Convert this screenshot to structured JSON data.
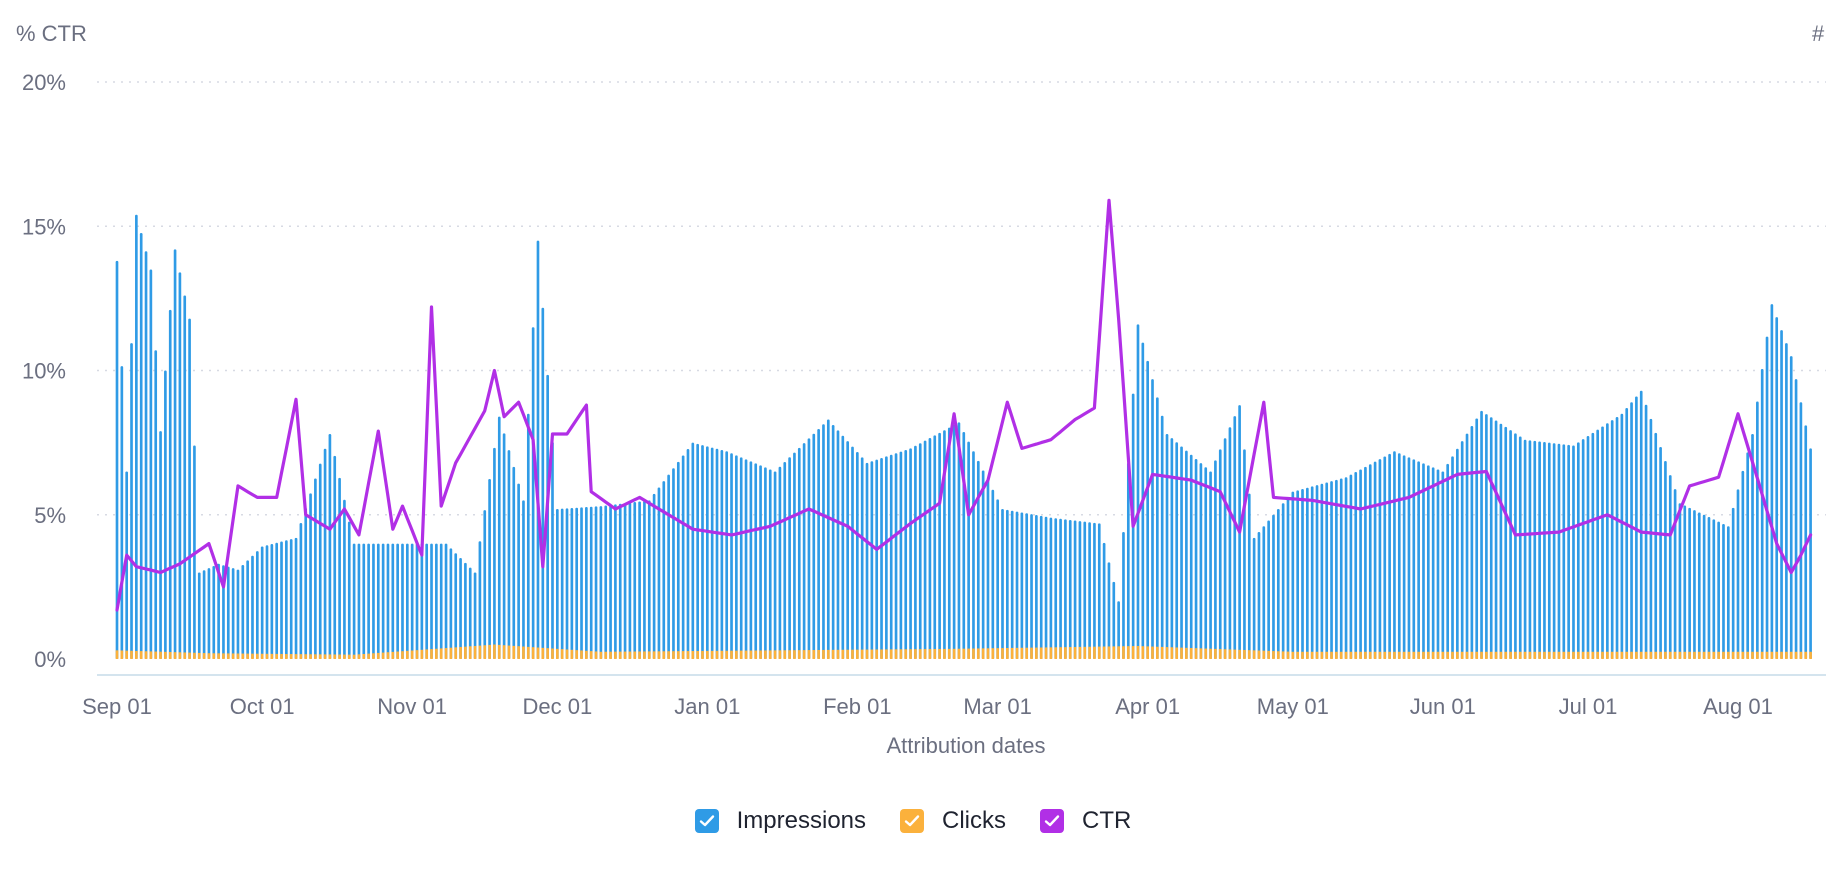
{
  "colors": {
    "impressions": "#2f9be6",
    "clicks": "#fbb13c",
    "ctr": "#b12fe6",
    "grid": "#d7dae3",
    "baseline": "#c5dce8"
  },
  "chart_data": {
    "type": "bar",
    "title": "",
    "xlabel": "Attribution dates",
    "ylabel_left": "% CTR",
    "ylabel_right": "#",
    "ylim_left": [
      0,
      20
    ],
    "yticks_left": [
      "0%",
      "5%",
      "10%",
      "15%",
      "20%"
    ],
    "x_ticks": [
      "Sep 01",
      "Oct 01",
      "Nov 01",
      "Dec 01",
      "Jan 01",
      "Feb 01",
      "Mar 01",
      "Apr 01",
      "May 01",
      "Jun 01",
      "Jul 01",
      "Aug 01"
    ],
    "x_start": "2023-09-01",
    "x_end": "2024-08-16",
    "grid": true,
    "legend_position": "bottom-center",
    "series": [
      {
        "name": "Impressions",
        "type": "bar",
        "axis": "secondary",
        "scale_note": "values plotted on the hidden # axis, shown here on the same visual scale as the % axis",
        "checkpoints": [
          [
            "2023-09-01",
            13.8
          ],
          [
            "2023-09-03",
            6.5
          ],
          [
            "2023-09-05",
            15.4
          ],
          [
            "2023-09-08",
            13.5
          ],
          [
            "2023-09-10",
            7.9
          ],
          [
            "2023-09-13",
            14.2
          ],
          [
            "2023-09-16",
            11.8
          ],
          [
            "2023-09-18",
            3.0
          ],
          [
            "2023-09-22",
            3.3
          ],
          [
            "2023-09-26",
            3.1
          ],
          [
            "2023-10-01",
            3.9
          ],
          [
            "2023-10-08",
            4.2
          ],
          [
            "2023-10-15",
            7.8
          ],
          [
            "2023-10-20",
            4.0
          ],
          [
            "2023-10-26",
            4.0
          ],
          [
            "2023-11-01",
            4.0
          ],
          [
            "2023-11-08",
            4.0
          ],
          [
            "2023-11-14",
            3.0
          ],
          [
            "2023-11-19",
            8.4
          ],
          [
            "2023-11-24",
            5.5
          ],
          [
            "2023-11-27",
            14.5
          ],
          [
            "2023-12-01",
            5.2
          ],
          [
            "2023-12-10",
            5.3
          ],
          [
            "2023-12-20",
            5.5
          ],
          [
            "2023-12-29",
            7.5
          ],
          [
            "2024-01-05",
            7.2
          ],
          [
            "2024-01-15",
            6.5
          ],
          [
            "2024-01-26",
            8.3
          ],
          [
            "2024-02-03",
            6.8
          ],
          [
            "2024-02-12",
            7.3
          ],
          [
            "2024-02-22",
            8.2
          ],
          [
            "2024-03-02",
            5.2
          ],
          [
            "2024-03-12",
            4.9
          ],
          [
            "2024-03-22",
            4.7
          ],
          [
            "2024-03-26",
            2.0
          ],
          [
            "2024-03-30",
            11.6
          ],
          [
            "2024-04-05",
            7.8
          ],
          [
            "2024-04-14",
            6.5
          ],
          [
            "2024-04-20",
            8.8
          ],
          [
            "2024-04-23",
            4.2
          ],
          [
            "2024-05-01",
            5.8
          ],
          [
            "2024-05-12",
            6.3
          ],
          [
            "2024-05-22",
            7.2
          ],
          [
            "2024-06-01",
            6.5
          ],
          [
            "2024-06-09",
            8.6
          ],
          [
            "2024-06-18",
            7.6
          ],
          [
            "2024-06-28",
            7.4
          ],
          [
            "2024-07-08",
            8.5
          ],
          [
            "2024-07-12",
            9.3
          ],
          [
            "2024-07-20",
            5.4
          ],
          [
            "2024-07-30",
            4.6
          ],
          [
            "2024-08-04",
            7.8
          ],
          [
            "2024-08-08",
            12.3
          ],
          [
            "2024-08-12",
            10.5
          ],
          [
            "2024-08-16",
            7.3
          ]
        ]
      },
      {
        "name": "Clicks",
        "type": "bar",
        "axis": "secondary",
        "checkpoints": [
          [
            "2023-09-01",
            0.3
          ],
          [
            "2023-09-20",
            0.2
          ],
          [
            "2023-10-20",
            0.15
          ],
          [
            "2023-11-18",
            0.5
          ],
          [
            "2023-12-10",
            0.25
          ],
          [
            "2024-02-20",
            0.35
          ],
          [
            "2024-03-30",
            0.45
          ],
          [
            "2024-05-01",
            0.25
          ],
          [
            "2024-08-16",
            0.25
          ]
        ]
      },
      {
        "name": "CTR",
        "type": "line",
        "axis": "left",
        "unit": "%",
        "checkpoints": [
          [
            "2023-09-01",
            1.7
          ],
          [
            "2023-09-03",
            3.6
          ],
          [
            "2023-09-05",
            3.2
          ],
          [
            "2023-09-10",
            3.0
          ],
          [
            "2023-09-14",
            3.3
          ],
          [
            "2023-09-20",
            4.0
          ],
          [
            "2023-09-23",
            2.5
          ],
          [
            "2023-09-26",
            6.0
          ],
          [
            "2023-09-30",
            5.6
          ],
          [
            "2023-10-04",
            5.6
          ],
          [
            "2023-10-08",
            9.0
          ],
          [
            "2023-10-10",
            5.0
          ],
          [
            "2023-10-15",
            4.5
          ],
          [
            "2023-10-18",
            5.2
          ],
          [
            "2023-10-21",
            4.3
          ],
          [
            "2023-10-25",
            7.9
          ],
          [
            "2023-10-28",
            4.5
          ],
          [
            "2023-10-30",
            5.3
          ],
          [
            "2023-11-03",
            3.6
          ],
          [
            "2023-11-05",
            12.2
          ],
          [
            "2023-11-07",
            5.3
          ],
          [
            "2023-11-10",
            6.8
          ],
          [
            "2023-11-16",
            8.6
          ],
          [
            "2023-11-18",
            10.0
          ],
          [
            "2023-11-20",
            8.4
          ],
          [
            "2023-11-23",
            8.9
          ],
          [
            "2023-11-26",
            7.6
          ],
          [
            "2023-11-28",
            3.2
          ],
          [
            "2023-11-30",
            7.8
          ],
          [
            "2023-12-03",
            7.8
          ],
          [
            "2023-12-07",
            8.8
          ],
          [
            "2023-12-08",
            5.8
          ],
          [
            "2023-12-13",
            5.2
          ],
          [
            "2023-12-18",
            5.6
          ],
          [
            "2023-12-23",
            5.1
          ],
          [
            "2023-12-29",
            4.5
          ],
          [
            "2024-01-06",
            4.3
          ],
          [
            "2024-01-14",
            4.6
          ],
          [
            "2024-01-22",
            5.2
          ],
          [
            "2024-01-30",
            4.6
          ],
          [
            "2024-02-05",
            3.8
          ],
          [
            "2024-02-12",
            4.7
          ],
          [
            "2024-02-18",
            5.4
          ],
          [
            "2024-02-21",
            8.5
          ],
          [
            "2024-02-24",
            5.0
          ],
          [
            "2024-02-28",
            6.2
          ],
          [
            "2024-03-03",
            8.9
          ],
          [
            "2024-03-06",
            7.3
          ],
          [
            "2024-03-12",
            7.6
          ],
          [
            "2024-03-17",
            8.3
          ],
          [
            "2024-03-21",
            8.7
          ],
          [
            "2024-03-24",
            15.9
          ],
          [
            "2024-03-26",
            11.8
          ],
          [
            "2024-03-29",
            4.6
          ],
          [
            "2024-04-02",
            6.4
          ],
          [
            "2024-04-10",
            6.2
          ],
          [
            "2024-04-16",
            5.8
          ],
          [
            "2024-04-20",
            4.4
          ],
          [
            "2024-04-25",
            8.9
          ],
          [
            "2024-04-27",
            5.6
          ],
          [
            "2024-05-05",
            5.5
          ],
          [
            "2024-05-15",
            5.2
          ],
          [
            "2024-05-25",
            5.6
          ],
          [
            "2024-06-04",
            6.4
          ],
          [
            "2024-06-10",
            6.5
          ],
          [
            "2024-06-16",
            4.3
          ],
          [
            "2024-06-25",
            4.4
          ],
          [
            "2024-07-05",
            5.0
          ],
          [
            "2024-07-12",
            4.4
          ],
          [
            "2024-07-18",
            4.3
          ],
          [
            "2024-07-22",
            6.0
          ],
          [
            "2024-07-28",
            6.3
          ],
          [
            "2024-08-01",
            8.5
          ],
          [
            "2024-08-06",
            5.7
          ],
          [
            "2024-08-09",
            4.0
          ],
          [
            "2024-08-12",
            3.0
          ],
          [
            "2024-08-14",
            3.6
          ],
          [
            "2024-08-16",
            4.3
          ]
        ]
      }
    ]
  }
}
